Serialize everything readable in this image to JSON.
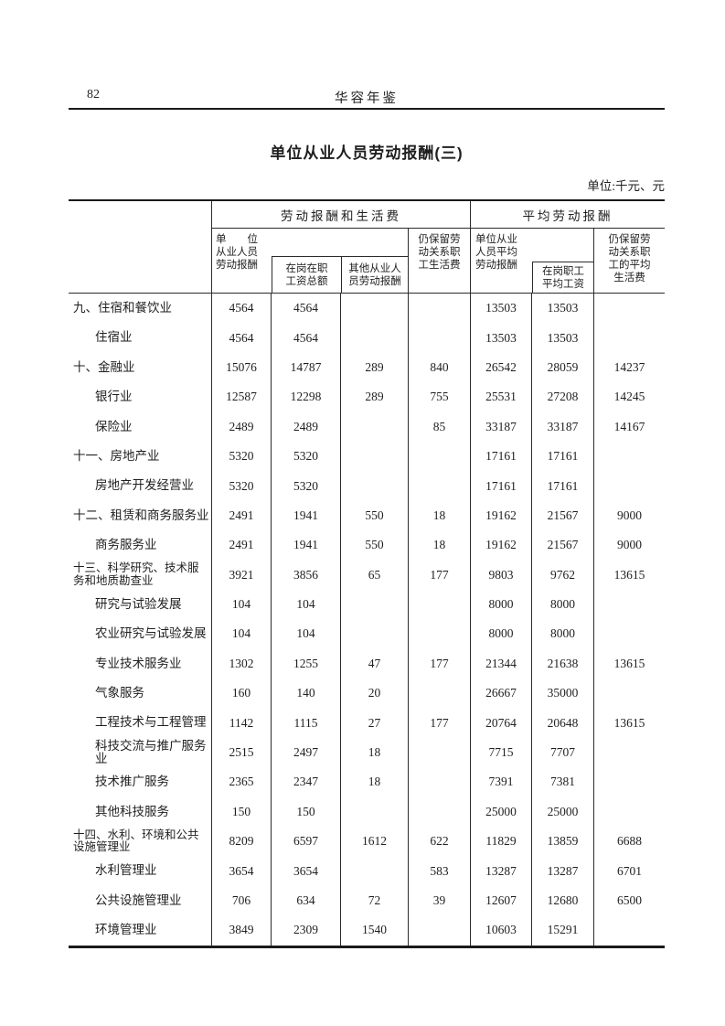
{
  "page": {
    "number": "82",
    "book_title": "华容年鉴"
  },
  "table": {
    "title": "单位从业人员劳动报酬(三)",
    "unit_note": "单位:千元、元",
    "groups": [
      {
        "label": "劳动报酬和生活费"
      },
      {
        "label": "平均劳动报酬"
      }
    ],
    "columns": [
      {
        "label": "单　　位\n从业人员\n劳动报酬"
      },
      {
        "label": "在岗在职\n工资总额"
      },
      {
        "label": "其他从业人\n员劳动报酬"
      },
      {
        "label": "仍保留劳\n动关系职\n工生活费"
      },
      {
        "label": "单位从业\n人员平均\n劳动报酬"
      },
      {
        "label": "在岗职工\n平均工资"
      },
      {
        "label": "仍保留劳\n动关系职\n工的平均\n生活费"
      }
    ],
    "rows": [
      {
        "label": "九、住宿和餐饮业",
        "indent": 0,
        "values": [
          "4564",
          "4564",
          "",
          "",
          "13503",
          "13503",
          ""
        ]
      },
      {
        "label": "住宿业",
        "indent": 1,
        "values": [
          "4564",
          "4564",
          "",
          "",
          "13503",
          "13503",
          ""
        ]
      },
      {
        "label": "十、金融业",
        "indent": 0,
        "values": [
          "15076",
          "14787",
          "289",
          "840",
          "26542",
          "28059",
          "14237"
        ]
      },
      {
        "label": "银行业",
        "indent": 1,
        "values": [
          "12587",
          "12298",
          "289",
          "755",
          "25531",
          "27208",
          "14245"
        ]
      },
      {
        "label": "保险业",
        "indent": 1,
        "values": [
          "2489",
          "2489",
          "",
          "85",
          "33187",
          "33187",
          "14167"
        ]
      },
      {
        "label": "十一、房地产业",
        "indent": 0,
        "values": [
          "5320",
          "5320",
          "",
          "",
          "17161",
          "17161",
          ""
        ]
      },
      {
        "label": "房地产开发经营业",
        "indent": 1,
        "values": [
          "5320",
          "5320",
          "",
          "",
          "17161",
          "17161",
          ""
        ]
      },
      {
        "label": "十二、租赁和商务服务业",
        "indent": 0,
        "values": [
          "2491",
          "1941",
          "550",
          "18",
          "19162",
          "21567",
          "9000"
        ]
      },
      {
        "label": "商务服务业",
        "indent": 1,
        "values": [
          "2491",
          "1941",
          "550",
          "18",
          "19162",
          "21567",
          "9000"
        ]
      },
      {
        "label": "十三、科学研究、技术服务和地质勘查业",
        "indent": 0,
        "small": true,
        "values": [
          "3921",
          "3856",
          "65",
          "177",
          "9803",
          "9762",
          "13615"
        ]
      },
      {
        "label": "研究与试验发展",
        "indent": 1,
        "values": [
          "104",
          "104",
          "",
          "",
          "8000",
          "8000",
          ""
        ]
      },
      {
        "label": "农业研究与试验发展",
        "indent": 1,
        "values": [
          "104",
          "104",
          "",
          "",
          "8000",
          "8000",
          ""
        ]
      },
      {
        "label": "专业技术服务业",
        "indent": 1,
        "values": [
          "1302",
          "1255",
          "47",
          "177",
          "21344",
          "21638",
          "13615"
        ]
      },
      {
        "label": "气象服务",
        "indent": 1,
        "values": [
          "160",
          "140",
          "20",
          "",
          "26667",
          "35000",
          ""
        ]
      },
      {
        "label": "工程技术与工程管理",
        "indent": 1,
        "values": [
          "1142",
          "1115",
          "27",
          "177",
          "20764",
          "20648",
          "13615"
        ]
      },
      {
        "label": "科技交流与推广服务业",
        "indent": 1,
        "values": [
          "2515",
          "2497",
          "18",
          "",
          "7715",
          "7707",
          ""
        ]
      },
      {
        "label": "技术推广服务",
        "indent": 1,
        "values": [
          "2365",
          "2347",
          "18",
          "",
          "7391",
          "7381",
          ""
        ]
      },
      {
        "label": "其他科技服务",
        "indent": 1,
        "values": [
          "150",
          "150",
          "",
          "",
          "25000",
          "25000",
          ""
        ]
      },
      {
        "label": "十四、水利、环境和公共设施管理业",
        "indent": 0,
        "small": true,
        "values": [
          "8209",
          "6597",
          "1612",
          "622",
          "11829",
          "13859",
          "6688"
        ]
      },
      {
        "label": "水利管理业",
        "indent": 1,
        "values": [
          "3654",
          "3654",
          "",
          "583",
          "13287",
          "13287",
          "6701"
        ]
      },
      {
        "label": "公共设施管理业",
        "indent": 1,
        "values": [
          "706",
          "634",
          "72",
          "39",
          "12607",
          "12680",
          "6500"
        ]
      },
      {
        "label": "环境管理业",
        "indent": 1,
        "values": [
          "3849",
          "2309",
          "1540",
          "",
          "10603",
          "15291",
          ""
        ]
      }
    ]
  }
}
